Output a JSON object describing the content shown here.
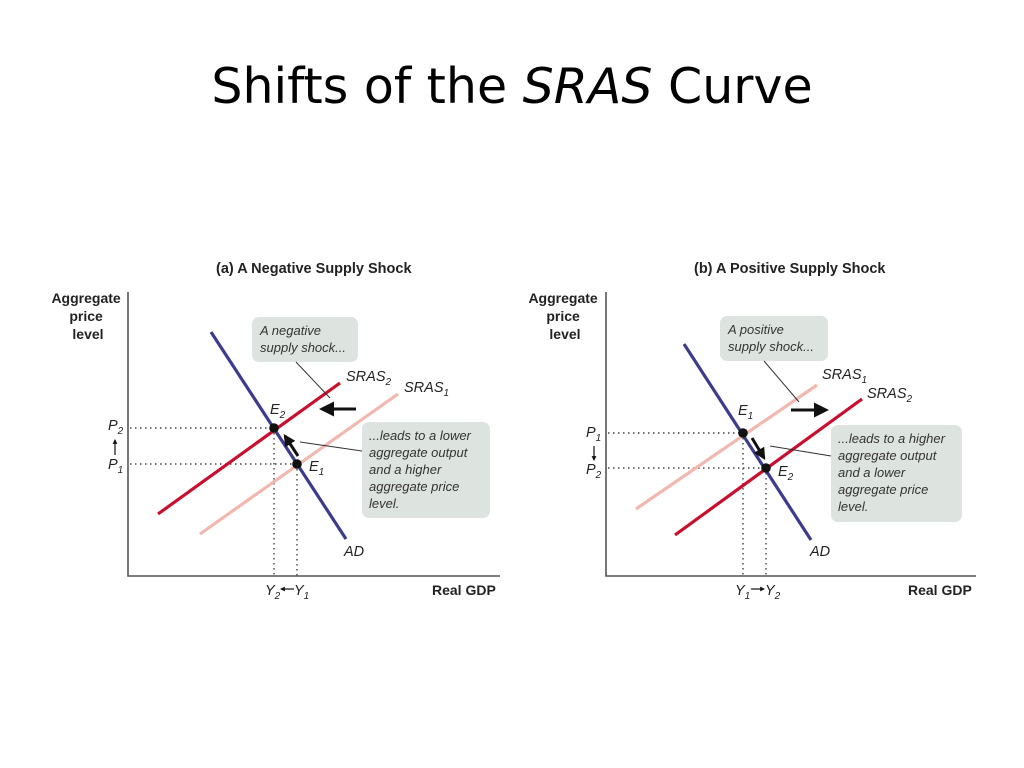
{
  "slide": {
    "title_prefix": "Shifts of the ",
    "title_emphasis": "SRAS",
    "title_suffix": " Curve"
  },
  "panels": [
    {
      "id": "a",
      "title": "(a) A Negative Supply Shock",
      "y_axis_label": [
        "Aggregate",
        "price",
        "level"
      ],
      "x_axis_label": "Real GDP",
      "curves": [
        {
          "name": "SRAS",
          "sub": "2",
          "color": "#c8102e"
        },
        {
          "name": "SRAS",
          "sub": "1",
          "color": "#f2b8b0"
        },
        {
          "name": "AD",
          "sub": "",
          "color": "#3c3c8c"
        }
      ],
      "points": [
        {
          "name": "E",
          "sub": "2"
        },
        {
          "name": "E",
          "sub": "1"
        }
      ],
      "price_ticks": [
        {
          "name": "P",
          "sub": "2"
        },
        {
          "name": "P",
          "sub": "1"
        }
      ],
      "output_ticks": [
        {
          "name": "Y",
          "sub": "2"
        },
        {
          "name": "Y",
          "sub": "1"
        }
      ],
      "callout_shift": [
        "A negative",
        "supply shock..."
      ],
      "callout_result": [
        "...leads to a lower",
        "aggregate output",
        "and a higher",
        "aggregate price",
        "level."
      ]
    },
    {
      "id": "b",
      "title": "(b) A Positive Supply Shock",
      "y_axis_label": [
        "Aggregate",
        "price",
        "level"
      ],
      "x_axis_label": "Real GDP",
      "curves": [
        {
          "name": "SRAS",
          "sub": "1",
          "color": "#f2b8b0"
        },
        {
          "name": "SRAS",
          "sub": "2",
          "color": "#c8102e"
        },
        {
          "name": "AD",
          "sub": "",
          "color": "#3c3c8c"
        }
      ],
      "points": [
        {
          "name": "E",
          "sub": "1"
        },
        {
          "name": "E",
          "sub": "2"
        }
      ],
      "price_ticks": [
        {
          "name": "P",
          "sub": "1"
        },
        {
          "name": "P",
          "sub": "2"
        }
      ],
      "output_ticks": [
        {
          "name": "Y",
          "sub": "1"
        },
        {
          "name": "Y",
          "sub": "2"
        }
      ],
      "callout_shift": [
        "A positive",
        "supply shock..."
      ],
      "callout_result": [
        "...leads to a higher",
        "aggregate output",
        "and a lower",
        "aggregate price",
        "level."
      ]
    }
  ]
}
